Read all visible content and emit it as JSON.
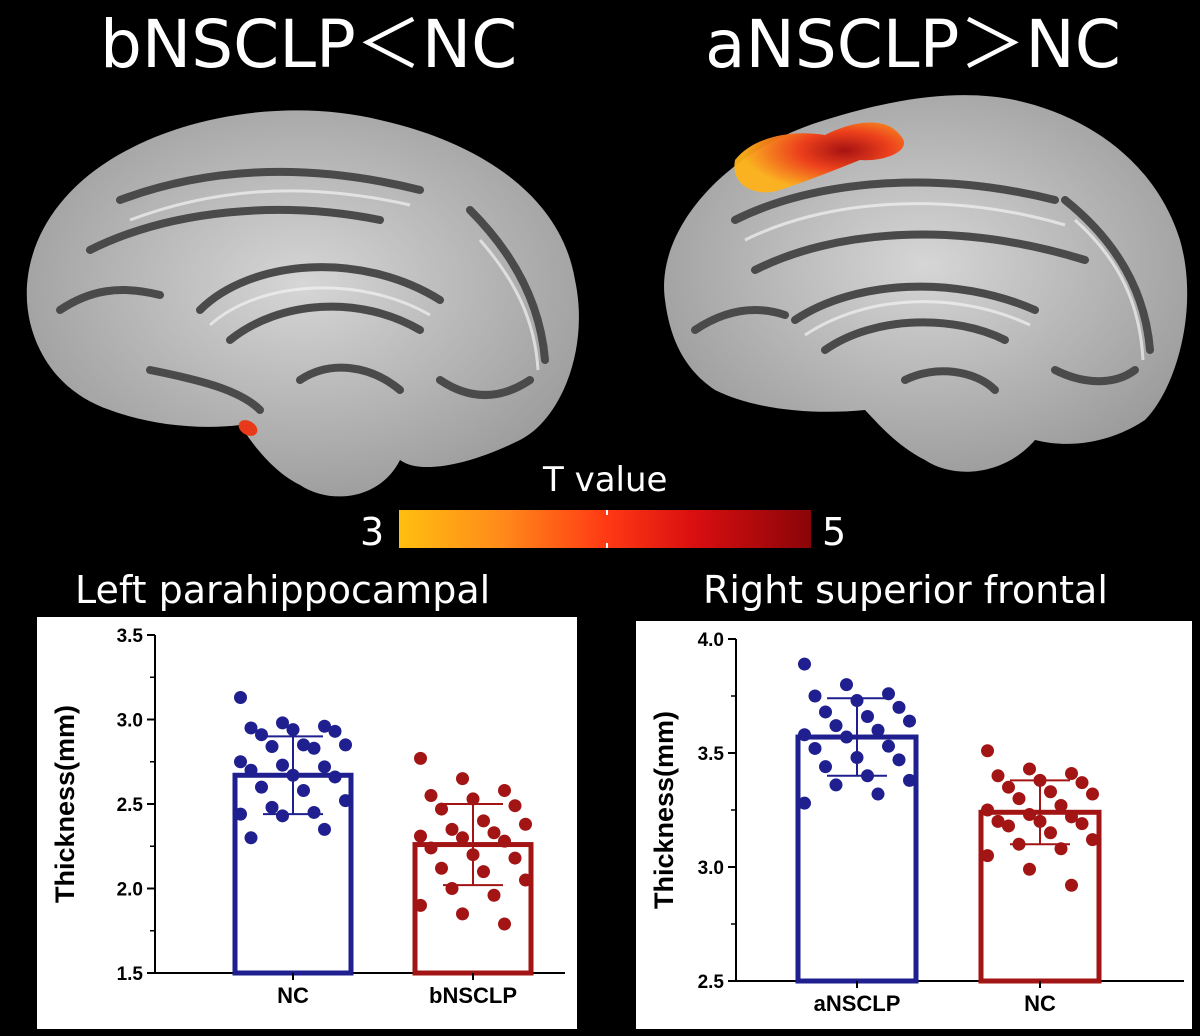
{
  "headings": {
    "left": "bNSCLP＜NC",
    "right": "aNSCLP＞NC"
  },
  "colorbar": {
    "title": "T value",
    "min_label": "3",
    "max_label": "5",
    "colors": [
      "#ffbe10",
      "#ff8a1a",
      "#ff3a14",
      "#d80e10",
      "#8a0508"
    ]
  },
  "colors": {
    "nc_or_first": "#1f1f8f",
    "red_group": "#a31515"
  },
  "chart_data": [
    {
      "type": "bar",
      "title": "Left parahippocampal",
      "ylabel": "Thickness(mm)",
      "categories": [
        "NC",
        "bNSCLP"
      ],
      "values": [
        2.67,
        2.26
      ],
      "sd": [
        0.23,
        0.24
      ],
      "ylim": [
        1.5,
        3.5
      ],
      "yticks": [
        "1.5",
        "2.0",
        "2.5",
        "3.0",
        "3.5"
      ],
      "bar_colors": [
        "#1f1f8f",
        "#a31515"
      ],
      "points": [
        [
          3.13,
          2.98,
          2.96,
          2.95,
          2.94,
          2.93,
          2.91,
          2.85,
          2.85,
          2.84,
          2.83,
          2.75,
          2.73,
          2.72,
          2.7,
          2.67,
          2.66,
          2.6,
          2.58,
          2.52,
          2.48,
          2.45,
          2.44,
          2.43,
          2.35,
          2.3
        ],
        [
          2.77,
          2.65,
          2.58,
          2.55,
          2.53,
          2.49,
          2.47,
          2.4,
          2.38,
          2.35,
          2.33,
          2.31,
          2.3,
          2.28,
          2.24,
          2.2,
          2.18,
          2.12,
          2.1,
          2.05,
          2.0,
          1.96,
          1.9,
          1.85,
          1.79
        ]
      ],
      "grid": false
    },
    {
      "type": "bar",
      "title": "Right superior frontal",
      "ylabel": "Thickness(mm)",
      "categories": [
        "aNSCLP",
        "NC"
      ],
      "values": [
        3.57,
        3.24
      ],
      "sd": [
        0.17,
        0.14
      ],
      "ylim": [
        2.5,
        4.0
      ],
      "yticks": [
        "2.5",
        "3.0",
        "3.5",
        "4.0"
      ],
      "bar_colors": [
        "#1f1f8f",
        "#a31515"
      ],
      "points": [
        [
          3.89,
          3.8,
          3.76,
          3.75,
          3.73,
          3.7,
          3.68,
          3.66,
          3.64,
          3.62,
          3.6,
          3.58,
          3.57,
          3.53,
          3.52,
          3.48,
          3.47,
          3.44,
          3.4,
          3.38,
          3.36,
          3.32,
          3.28
        ],
        [
          3.51,
          3.43,
          3.41,
          3.4,
          3.38,
          3.37,
          3.35,
          3.33,
          3.32,
          3.3,
          3.27,
          3.25,
          3.23,
          3.22,
          3.2,
          3.2,
          3.19,
          3.18,
          3.15,
          3.12,
          3.1,
          3.08,
          3.05,
          2.99,
          2.92
        ]
      ],
      "grid": false
    }
  ]
}
